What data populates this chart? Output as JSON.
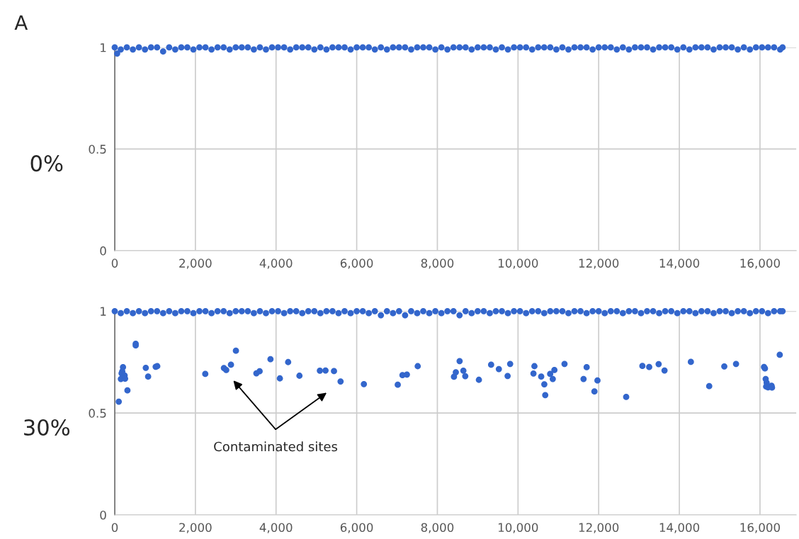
{
  "chart_data": [
    {
      "type": "scatter",
      "ylabel": "0%",
      "annotations": [
        "A"
      ],
      "xlim": [
        0,
        16900
      ],
      "ylim": [
        0,
        1
      ],
      "xticks": [
        0,
        {
          "value": 2000,
          "label": "2,000"
        },
        {
          "value": 4000,
          "label": "4,000"
        },
        {
          "value": 6000,
          "label": "6,000"
        },
        {
          "value": 8000,
          "label": "8,000"
        },
        {
          "value": 10000,
          "label": "10,000"
        },
        {
          "value": 12000,
          "label": "12,000"
        },
        {
          "value": 14000,
          "label": "14,000"
        },
        {
          "value": 16000,
          "label": "16,000"
        }
      ],
      "yticks": [
        0,
        0.5,
        1
      ],
      "grid": true,
      "marker": "circle",
      "series": [
        {
          "color": "#3366cc",
          "x": [
            0,
            60,
            150,
            300,
            450,
            600,
            750,
            900,
            1050,
            1200,
            1350,
            1500,
            1650,
            1800,
            1950,
            2100,
            2250,
            2400,
            2550,
            2700,
            2850,
            3000,
            3150,
            3300,
            3450,
            3600,
            3750,
            3900,
            4050,
            4200,
            4350,
            4500,
            4650,
            4800,
            4950,
            5100,
            5250,
            5400,
            5550,
            5700,
            5850,
            6000,
            6150,
            6300,
            6450,
            6600,
            6750,
            6900,
            7050,
            7200,
            7350,
            7500,
            7650,
            7800,
            7950,
            8100,
            8250,
            8400,
            8550,
            8700,
            8850,
            9000,
            9150,
            9300,
            9450,
            9600,
            9750,
            9900,
            10050,
            10200,
            10350,
            10500,
            10650,
            10800,
            10950,
            11100,
            11250,
            11400,
            11550,
            11700,
            11850,
            12000,
            12150,
            12300,
            12450,
            12600,
            12750,
            12900,
            13050,
            13200,
            13350,
            13500,
            13650,
            13800,
            13950,
            14100,
            14250,
            14400,
            14550,
            14700,
            14850,
            15000,
            15150,
            15300,
            15450,
            15600,
            15750,
            15900,
            16050,
            16200,
            16350,
            16500,
            16560
          ],
          "values": [
            1,
            0.97,
            0.99,
            1,
            0.99,
            1,
            0.99,
            1,
            1,
            0.98,
            1,
            0.99,
            1,
            1,
            0.99,
            1,
            1,
            0.99,
            1,
            1,
            0.99,
            1,
            1,
            1,
            0.99,
            1,
            0.99,
            1,
            1,
            1,
            0.99,
            1,
            1,
            1,
            0.99,
            1,
            0.99,
            1,
            1,
            1,
            0.99,
            1,
            1,
            1,
            0.99,
            1,
            0.99,
            1,
            1,
            1,
            0.99,
            1,
            1,
            1,
            0.99,
            1,
            0.99,
            1,
            1,
            1,
            0.99,
            1,
            1,
            1,
            0.99,
            1,
            0.99,
            1,
            1,
            1,
            0.99,
            1,
            1,
            1,
            0.99,
            1,
            0.99,
            1,
            1,
            1,
            0.99,
            1,
            1,
            1,
            0.99,
            1,
            0.99,
            1,
            1,
            1,
            0.99,
            1,
            1,
            1,
            0.99,
            1,
            0.99,
            1,
            1,
            1,
            0.99,
            1,
            1,
            1,
            0.99,
            1,
            0.99,
            1,
            1,
            1,
            1,
            0.99,
            1
          ]
        }
      ]
    },
    {
      "type": "scatter",
      "ylabel": "30%",
      "annotations": [
        "Contaminated sites"
      ],
      "xlim": [
        0,
        16900
      ],
      "ylim": [
        0,
        1
      ],
      "xticks": [
        0,
        {
          "value": 2000,
          "label": "2,000"
        },
        {
          "value": 4000,
          "label": "4,000"
        },
        {
          "value": 6000,
          "label": "6,000"
        },
        {
          "value": 8000,
          "label": "8,000"
        },
        {
          "value": 10000,
          "label": "10,000"
        },
        {
          "value": 12000,
          "label": "12,000"
        },
        {
          "value": 14000,
          "label": "14,000"
        },
        {
          "value": 16000,
          "label": "16,000"
        }
      ],
      "yticks": [
        0,
        0.5,
        1
      ],
      "grid": true,
      "marker": "circle",
      "series": [
        {
          "color": "#3366cc",
          "x": [
            0,
            150,
            300,
            450,
            600,
            750,
            900,
            1050,
            1200,
            1350,
            1500,
            1650,
            1800,
            1950,
            2100,
            2250,
            2400,
            2550,
            2700,
            2850,
            3000,
            3150,
            3300,
            3450,
            3600,
            3750,
            3900,
            4050,
            4200,
            4350,
            4500,
            4650,
            4800,
            4950,
            5100,
            5250,
            5400,
            5550,
            5700,
            5850,
            6000,
            6150,
            6300,
            6450,
            6600,
            6750,
            6900,
            7050,
            7200,
            7350,
            7500,
            7650,
            7800,
            7950,
            8100,
            8250,
            8400,
            8550,
            8700,
            8850,
            9000,
            9150,
            9300,
            9450,
            9600,
            9750,
            9900,
            10050,
            10200,
            10350,
            10500,
            10650,
            10800,
            10950,
            11100,
            11250,
            11400,
            11550,
            11700,
            11850,
            12000,
            12150,
            12300,
            12450,
            12600,
            12750,
            12900,
            13050,
            13200,
            13350,
            13500,
            13650,
            13800,
            13950,
            14100,
            14250,
            14400,
            14550,
            14700,
            14850,
            15000,
            15150,
            15300,
            15450,
            15600,
            15750,
            15900,
            16050,
            16200,
            16350,
            16500,
            16560
          ],
          "values": [
            1,
            0.99,
            1,
            0.99,
            1,
            0.99,
            1,
            1,
            0.99,
            1,
            0.99,
            1,
            1,
            0.99,
            1,
            1,
            0.99,
            1,
            1,
            0.99,
            1,
            1,
            1,
            0.99,
            1,
            0.99,
            1,
            1,
            0.99,
            1,
            1,
            0.99,
            1,
            1,
            0.99,
            1,
            1,
            0.99,
            1,
            0.99,
            1,
            1,
            0.99,
            1,
            0.98,
            1,
            0.99,
            1,
            0.98,
            1,
            0.99,
            1,
            0.99,
            1,
            0.99,
            1,
            1,
            0.98,
            1,
            0.99,
            1,
            1,
            0.99,
            1,
            1,
            0.99,
            1,
            1,
            0.99,
            1,
            1,
            0.99,
            1,
            1,
            1,
            0.99,
            1,
            1,
            0.99,
            1,
            1,
            0.99,
            1,
            1,
            0.99,
            1,
            1,
            0.99,
            1,
            1,
            0.99,
            1,
            1,
            0.99,
            1,
            1,
            0.99,
            1,
            1,
            0.99,
            1,
            1,
            0.99,
            1,
            1,
            0.99,
            1,
            1,
            0.99,
            1,
            1,
            1
          ]
        },
        {
          "color": "#3366cc",
          "x": [
            100,
            520,
            520,
            205,
            187,
            170,
            152,
            245,
            257,
            315,
            770,
            828,
            1015,
            1055,
            2245,
            2707,
            2765,
            2882,
            3005,
            3512,
            3593,
            3862,
            4095,
            4300,
            4580,
            5087,
            5227,
            5437,
            5600,
            6178,
            7018,
            7135,
            7245,
            7513,
            8412,
            8458,
            8552,
            8645,
            8692,
            9030,
            9333,
            9525,
            9742,
            9805,
            10383,
            10407,
            10575,
            10652,
            10675,
            10797,
            10862,
            10902,
            11153,
            11625,
            11702,
            11895,
            11970,
            12682,
            13084,
            13253,
            13487,
            13633,
            14286,
            14741,
            15115,
            15406,
            16100,
            16123,
            16141,
            16165,
            16152,
            16200,
            16287,
            16298,
            16490
          ],
          "values": [
            0.556,
            0.84,
            0.832,
            0.725,
            0.704,
            0.695,
            0.667,
            0.684,
            0.669,
            0.611,
            0.722,
            0.679,
            0.727,
            0.73,
            0.692,
            0.721,
            0.711,
            0.737,
            0.806,
            0.695,
            0.705,
            0.764,
            0.67,
            0.75,
            0.683,
            0.708,
            0.709,
            0.706,
            0.655,
            0.642,
            0.639,
            0.686,
            0.689,
            0.73,
            0.678,
            0.7,
            0.755,
            0.708,
            0.681,
            0.663,
            0.737,
            0.716,
            0.682,
            0.741,
            0.694,
            0.73,
            0.679,
            0.641,
            0.588,
            0.692,
            0.667,
            0.711,
            0.741,
            0.667,
            0.725,
            0.606,
            0.66,
            0.579,
            0.731,
            0.726,
            0.74,
            0.709,
            0.751,
            0.632,
            0.729,
            0.741,
            0.726,
            0.719,
            0.667,
            0.649,
            0.63,
            0.626,
            0.634,
            0.625,
            0.786
          ]
        }
      ]
    }
  ]
}
